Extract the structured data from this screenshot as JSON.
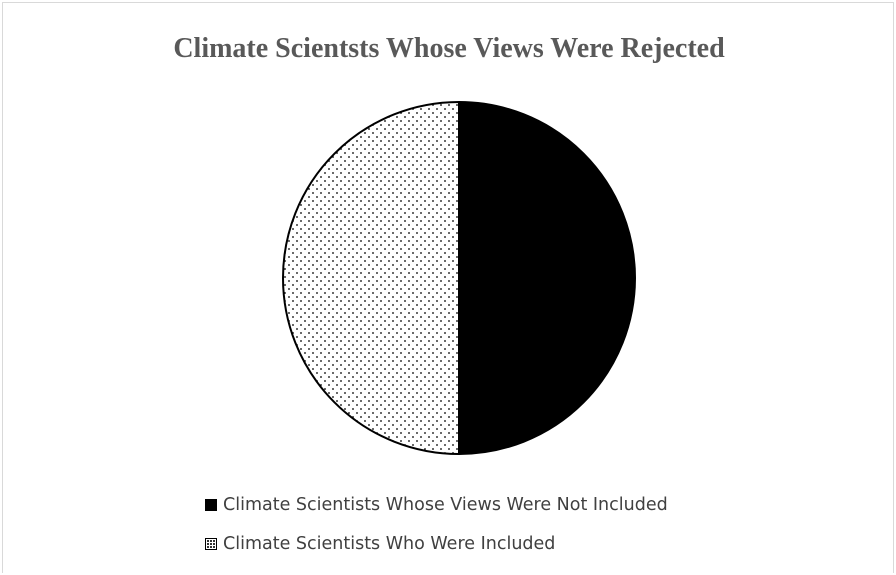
{
  "chart_data": {
    "type": "pie",
    "title": "Climate Scientsts Whose Views Were Rejected",
    "slices": [
      {
        "label": "Climate Scientists Whose Views Were Not Included",
        "value": 50,
        "color": "#000000",
        "fill": "solid"
      },
      {
        "label": "Climate Scientists Who Were Included",
        "value": 50,
        "color": "#ffffff",
        "fill": "dotted"
      }
    ],
    "legend_position": "bottom",
    "start_angle_deg": 0,
    "direction": "clockwise"
  }
}
